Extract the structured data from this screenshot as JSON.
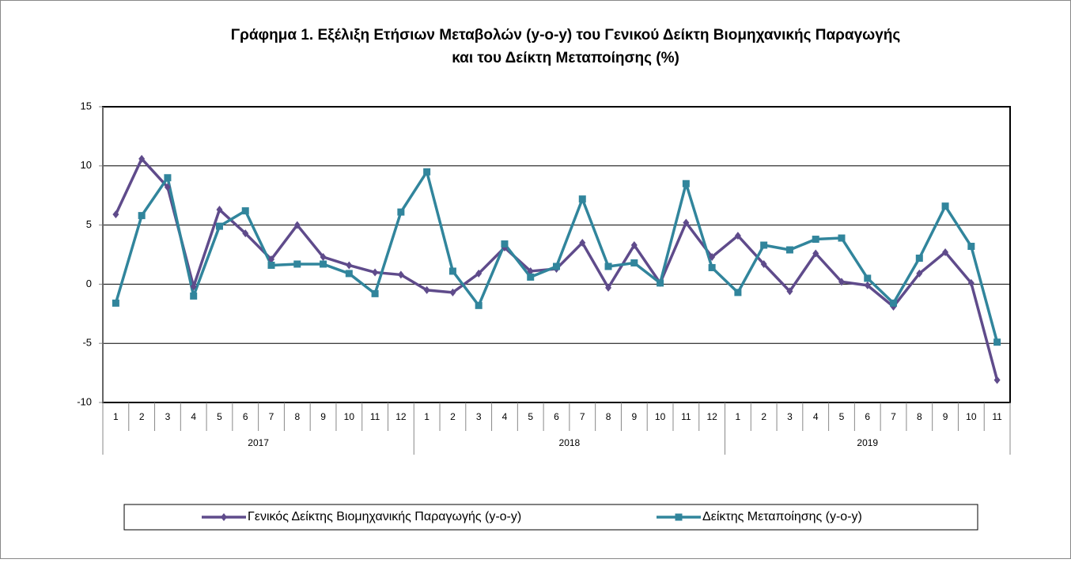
{
  "chart_data": {
    "type": "line",
    "title": [
      "Γράφημα 1. Εξέλιξη Ετήσιων Μεταβολών (y-o-y) του Γενικού Δείκτη Βιομηχανικής Παραγωγής",
      "και του Δείκτη Μεταποίησης (%)"
    ],
    "groups": [
      {
        "name": "2017",
        "categories": [
          "1",
          "2",
          "3",
          "4",
          "5",
          "6",
          "7",
          "8",
          "9",
          "10",
          "11",
          "12"
        ]
      },
      {
        "name": "2018",
        "categories": [
          "1",
          "2",
          "3",
          "4",
          "5",
          "6",
          "7",
          "8",
          "9",
          "10",
          "11",
          "12"
        ]
      },
      {
        "name": "2019",
        "categories": [
          "1",
          "2",
          "3",
          "4",
          "5",
          "6",
          "7",
          "8",
          "9",
          "10",
          "11"
        ]
      }
    ],
    "series": [
      {
        "name": "Γενικός Δείκτης Βιομηχανικής Παραγωγής (y-o-y)",
        "color": "#5f4b8b",
        "marker": "diamond",
        "values": [
          5.9,
          10.6,
          8.2,
          -0.2,
          6.3,
          4.3,
          2.1,
          5.0,
          2.3,
          1.6,
          1.0,
          0.8,
          -0.5,
          -0.7,
          0.9,
          3.1,
          1.1,
          1.3,
          3.5,
          -0.3,
          3.3,
          0.1,
          5.2,
          2.3,
          4.1,
          1.7,
          -0.6,
          2.6,
          0.2,
          -0.1,
          -1.9,
          0.9,
          2.7,
          0.1,
          -8.1
        ]
      },
      {
        "name": "Δείκτης Μεταποίησης (y-o-y)",
        "color": "#31859c",
        "marker": "square",
        "values": [
          -1.6,
          5.8,
          9.0,
          -1.0,
          4.9,
          6.2,
          1.6,
          1.7,
          1.7,
          0.9,
          -0.8,
          6.1,
          9.5,
          1.1,
          -1.8,
          3.4,
          0.6,
          1.5,
          7.2,
          1.5,
          1.8,
          0.1,
          8.5,
          1.4,
          -0.7,
          3.3,
          2.9,
          3.8,
          3.9,
          0.5,
          -1.6,
          2.2,
          6.6,
          3.2,
          -4.9
        ]
      }
    ],
    "ylim": [
      -10,
      15
    ],
    "yticks": [
      -10,
      -5,
      0,
      5,
      10,
      15
    ],
    "grid": true,
    "legend": "bottom"
  }
}
